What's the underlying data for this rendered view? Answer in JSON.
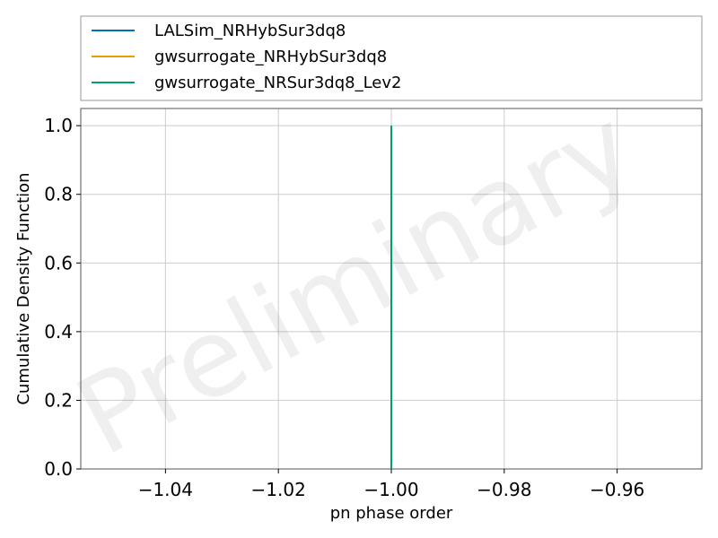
{
  "chart_data": {
    "type": "line",
    "title": "",
    "xlabel": "pn phase order",
    "ylabel": "Cumulative Density Function",
    "xlim": [
      -1.055,
      -0.945
    ],
    "ylim": [
      0,
      1.05
    ],
    "x_ticks": [
      -1.04,
      -1.02,
      -1.0,
      -0.98,
      -0.96
    ],
    "x_tick_labels": [
      "−1.04",
      "−1.02",
      "−1.00",
      "−0.98",
      "−0.96"
    ],
    "y_ticks": [
      0.0,
      0.2,
      0.4,
      0.6,
      0.8,
      1.0
    ],
    "y_tick_labels": [
      "0.0",
      "0.2",
      "0.4",
      "0.6",
      "0.8",
      "1.0"
    ],
    "grid": true,
    "legend_position": "above",
    "watermark": "Preliminary",
    "series": [
      {
        "name": "LALSim_NRHybSur3dq8",
        "color": "#0072b2",
        "x": [
          -1.0,
          -1.0
        ],
        "y": [
          0.0,
          1.0
        ]
      },
      {
        "name": "gwsurrogate_NRHybSur3dq8",
        "color": "#e69f00",
        "x": [
          -1.0,
          -1.0
        ],
        "y": [
          0.0,
          1.0
        ]
      },
      {
        "name": "gwsurrogate_NRSur3dq8_Lev2",
        "color": "#009e73",
        "x": [
          -1.0,
          -1.0
        ],
        "y": [
          0.0,
          1.0
        ]
      }
    ]
  }
}
